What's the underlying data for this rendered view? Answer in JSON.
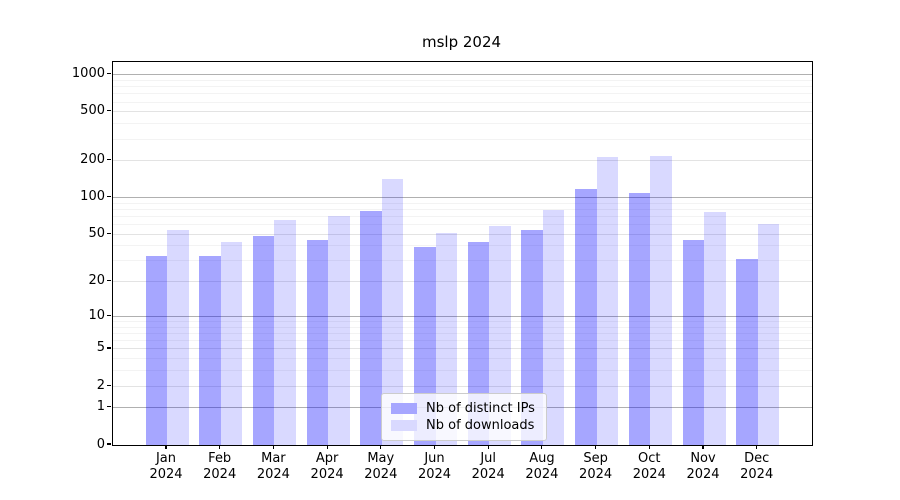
{
  "title": "mslp 2024",
  "legend": {
    "items": [
      {
        "label": "Nb of distinct IPs",
        "series": "ips"
      },
      {
        "label": "Nb of downloads",
        "series": "downloads"
      }
    ]
  },
  "colors": {
    "ips": "rgba(0,0,255,0.35)",
    "downloads": "rgba(0,0,255,0.15)",
    "ips_solid": "#a6a6ff",
    "downloads_solid": "#d9d9ff",
    "grid_major": "#b0b0b0",
    "grid_mid": "#e3e3e3",
    "grid_minor": "#f3f3f3"
  },
  "y_axis": {
    "ticks": [
      {
        "value": 1000,
        "label": "1000"
      },
      {
        "value": 500,
        "label": "500"
      },
      {
        "value": 200,
        "label": "200"
      },
      {
        "value": 100,
        "label": "100"
      },
      {
        "value": 50,
        "label": "50"
      },
      {
        "value": 20,
        "label": "20"
      },
      {
        "value": 10,
        "label": "10"
      },
      {
        "value": 5,
        "label": "5"
      },
      {
        "value": 2,
        "label": "2"
      },
      {
        "value": 1,
        "label": "1"
      },
      {
        "value": 0,
        "label": "0"
      }
    ],
    "grid_major_values": [
      1,
      10,
      100,
      1000
    ],
    "grid_mid_values": [
      2,
      5,
      20,
      50,
      200,
      500
    ],
    "grid_minor_values": [
      3,
      4,
      6,
      7,
      8,
      9,
      30,
      40,
      60,
      70,
      80,
      90,
      300,
      400,
      600,
      700,
      800,
      900
    ]
  },
  "x_axis": {
    "months": [
      {
        "line1": "Jan",
        "line2": "2024"
      },
      {
        "line1": "Feb",
        "line2": "2024"
      },
      {
        "line1": "Mar",
        "line2": "2024"
      },
      {
        "line1": "Apr",
        "line2": "2024"
      },
      {
        "line1": "May",
        "line2": "2024"
      },
      {
        "line1": "Jun",
        "line2": "2024"
      },
      {
        "line1": "Jul",
        "line2": "2024"
      },
      {
        "line1": "Aug",
        "line2": "2024"
      },
      {
        "line1": "Sep",
        "line2": "2024"
      },
      {
        "line1": "Oct",
        "line2": "2024"
      },
      {
        "line1": "Nov",
        "line2": "2024"
      },
      {
        "line1": "Dec",
        "line2": "2024"
      }
    ]
  },
  "chart_data": {
    "type": "bar",
    "title": "mslp 2024",
    "categories": [
      "Jan 2024",
      "Feb 2024",
      "Mar 2024",
      "Apr 2024",
      "May 2024",
      "Jun 2024",
      "Jul 2024",
      "Aug 2024",
      "Sep 2024",
      "Oct 2024",
      "Nov 2024",
      "Dec 2024"
    ],
    "series": [
      {
        "name": "Nb of distinct IPs",
        "values": [
          33,
          33,
          48,
          45,
          78,
          39,
          43,
          54,
          117,
          110,
          45,
          31
        ]
      },
      {
        "name": "Nb of downloads",
        "values": [
          54,
          43,
          66,
          71,
          141,
          51,
          59,
          79,
          213,
          219,
          77,
          61
        ]
      }
    ],
    "xlabel": "",
    "ylabel": "",
    "yscale": "log(1+v)",
    "ylim": [
      0,
      1269
    ],
    "y_ticks": [
      0,
      1,
      2,
      5,
      10,
      20,
      50,
      100,
      200,
      500,
      1000
    ],
    "grid": true,
    "legend_position": "lower center"
  }
}
